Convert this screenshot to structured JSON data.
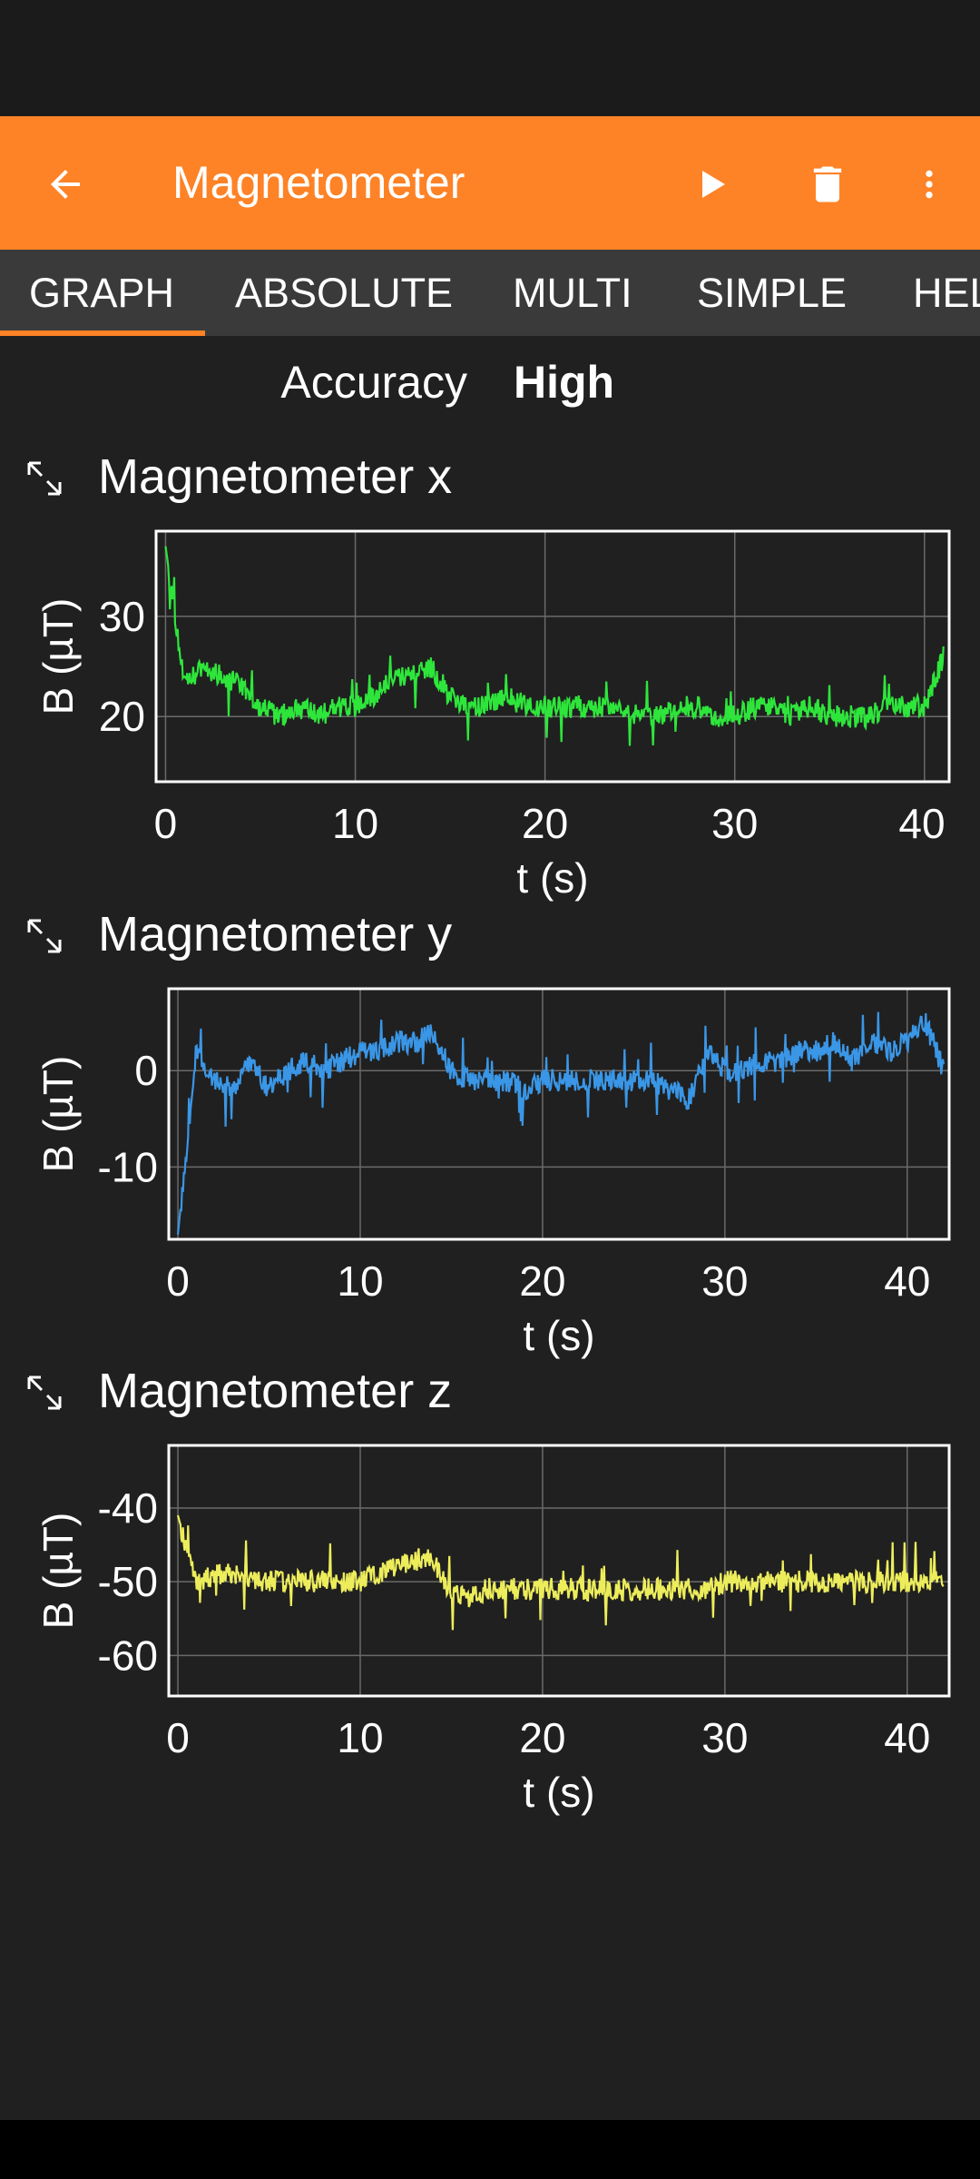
{
  "app": {
    "title": "Magnetometer",
    "accent_color": "#fe8226",
    "icons": {
      "back": "arrow-back-icon",
      "play": "play-icon",
      "delete": "trash-icon",
      "more": "more-vert-icon",
      "expand": "expand-icon"
    }
  },
  "tabs": [
    {
      "label": "GRAPH",
      "selected": true
    },
    {
      "label": "ABSOLUTE",
      "selected": false
    },
    {
      "label": "MULTI",
      "selected": false
    },
    {
      "label": "SIMPLE",
      "selected": false
    },
    {
      "label": "HELP",
      "selected": false
    }
  ],
  "accuracy": {
    "label": "Accuracy",
    "value": "High"
  },
  "chart_data": [
    {
      "type": "line",
      "title": "Magnetometer x",
      "xlabel": "t (s)",
      "ylabel": "B (µT)",
      "xlim": [
        -0.5,
        41.3
      ],
      "ylim": [
        13.5,
        38.5
      ],
      "xticks": [
        0,
        10,
        20,
        30,
        40
      ],
      "yticks": [
        20,
        30
      ],
      "grid": true,
      "color": "#2ee63b",
      "series": [
        {
          "x": [
            0,
            1,
            2,
            3,
            4,
            5,
            6,
            7,
            8,
            9,
            10,
            11,
            12,
            13,
            14,
            15,
            16,
            17,
            18,
            19,
            20,
            21,
            22,
            23,
            24,
            25,
            26,
            27,
            28,
            29,
            30,
            31,
            32,
            33,
            34,
            35,
            36,
            37,
            38,
            39,
            40,
            41
          ],
          "values": [
            37,
            23,
            25,
            24,
            23,
            21,
            20,
            21,
            20,
            21,
            21,
            22,
            24,
            24,
            25,
            22,
            21,
            21,
            22,
            21,
            21,
            21,
            21,
            21,
            21,
            20,
            20,
            21,
            21,
            20,
            20,
            21,
            21,
            20,
            21,
            20,
            20,
            20,
            21,
            21,
            21,
            26
          ]
        }
      ]
    },
    {
      "type": "line",
      "title": "Magnetometer y",
      "xlabel": "t (s)",
      "ylabel": "B (µT)",
      "xlim": [
        -0.5,
        42.3
      ],
      "ylim": [
        -17.5,
        8.5
      ],
      "xticks": [
        0,
        10,
        20,
        30,
        40
      ],
      "yticks": [
        0,
        -10
      ],
      "grid": true,
      "color": "#3a96e6",
      "series": [
        {
          "x": [
            0,
            1,
            2,
            3,
            4,
            5,
            6,
            7,
            8,
            9,
            10,
            11,
            12,
            13,
            14,
            15,
            16,
            17,
            18,
            19,
            20,
            21,
            22,
            23,
            24,
            25,
            26,
            27,
            28,
            29,
            30,
            31,
            32,
            33,
            34,
            35,
            36,
            37,
            38,
            39,
            40,
            41,
            42
          ],
          "values": [
            -17,
            2,
            -1,
            -2,
            1,
            -2,
            0,
            1,
            0,
            1,
            2,
            2,
            3,
            3,
            4,
            0,
            -1,
            -1,
            -1,
            -2,
            -1,
            -1,
            -1,
            -1,
            -1,
            -1,
            -1,
            -2,
            -3,
            2,
            0,
            0,
            1,
            1,
            2,
            2,
            3,
            1,
            3,
            2,
            3,
            5,
            0
          ]
        }
      ]
    },
    {
      "type": "line",
      "title": "Magnetometer z",
      "xlabel": "t (s)",
      "ylabel": "B (µT)",
      "xlim": [
        -0.5,
        42.3
      ],
      "ylim": [
        -65.5,
        -31.5
      ],
      "xticks": [
        0,
        10,
        20,
        30,
        40
      ],
      "yticks": [
        -40,
        -50,
        -60
      ],
      "grid": true,
      "color": "#eded5c",
      "series": [
        {
          "x": [
            0,
            1,
            2,
            3,
            4,
            5,
            6,
            7,
            8,
            9,
            10,
            11,
            12,
            13,
            14,
            15,
            16,
            17,
            18,
            19,
            20,
            21,
            22,
            23,
            24,
            25,
            26,
            27,
            28,
            29,
            30,
            31,
            32,
            33,
            34,
            35,
            36,
            37,
            38,
            39,
            40,
            41,
            42
          ],
          "values": [
            -41,
            -50,
            -49,
            -49,
            -50,
            -50,
            -50,
            -50,
            -50,
            -50,
            -50,
            -49,
            -48,
            -47,
            -47,
            -52,
            -52,
            -51,
            -51,
            -51,
            -51,
            -51,
            -51,
            -51,
            -51,
            -51,
            -51,
            -51,
            -51,
            -51,
            -50,
            -50,
            -50,
            -50,
            -50,
            -50,
            -50,
            -50,
            -50,
            -50,
            -50,
            -50,
            -49
          ]
        }
      ]
    }
  ]
}
